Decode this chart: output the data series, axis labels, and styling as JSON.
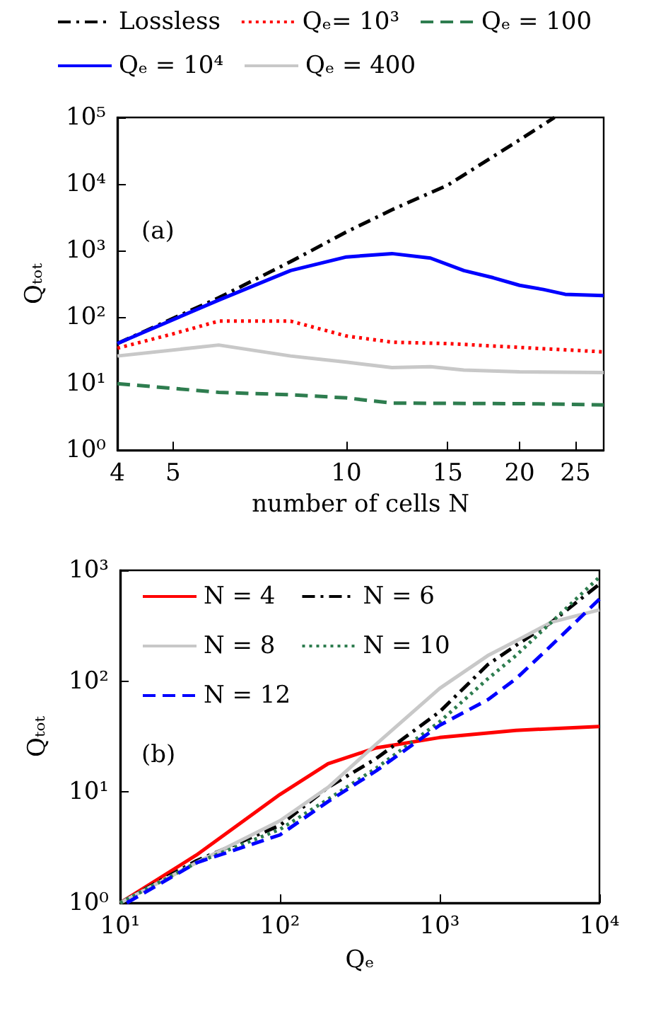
{
  "chart_data": [
    {
      "type": "line",
      "xlabel": "number of cells N",
      "ylabel": "Qₜₒₜ",
      "annotations": [
        "(a)"
      ],
      "log": "xy",
      "legend": "top",
      "grid": false,
      "marker": "none",
      "xlim": [
        4,
        28
      ],
      "xticks": [
        4,
        5,
        10,
        15,
        20,
        25
      ],
      "ylim": [
        1,
        100000
      ],
      "yticks": [
        {
          "value": 1,
          "label": "10⁰"
        },
        {
          "value": 10,
          "label": "10¹"
        },
        {
          "value": 100,
          "label": "10²"
        },
        {
          "value": 1000,
          "label": "10³"
        },
        {
          "value": 10000,
          "label": "10⁴"
        },
        {
          "value": 100000,
          "label": "10⁵"
        }
      ],
      "series": [
        {
          "name": "Lossless",
          "color": "#000000",
          "line_style": "dashdot",
          "x": [
            4,
            6,
            8,
            10,
            12,
            15,
            20,
            23
          ],
          "values": [
            40,
            195,
            680,
            1900,
            4100,
            9600,
            46000,
            100000
          ]
        },
        {
          "name": "Qₑ= 10³",
          "color": "#ff0000",
          "line_style": "dotted",
          "x": [
            4,
            5,
            6,
            8,
            10,
            12,
            15,
            20,
            28
          ],
          "values": [
            34,
            56,
            87,
            87,
            52,
            42,
            40,
            35,
            30
          ]
        },
        {
          "name": "Qₑ = 100",
          "color": "#2e7d4f",
          "line_style": "dashed",
          "x": [
            4,
            6,
            8,
            10,
            12,
            20,
            28
          ],
          "values": [
            10,
            7.4,
            6.8,
            6.1,
            5.1,
            5,
            4.8
          ]
        },
        {
          "name": "Qₑ = 10⁴",
          "color": "#0000ff",
          "line_style": "solid",
          "x": [
            4,
            6,
            8,
            10,
            12,
            14,
            16,
            18,
            20,
            22,
            24,
            28
          ],
          "values": [
            40,
            180,
            500,
            800,
            900,
            770,
            500,
            390,
            300,
            260,
            220,
            210
          ]
        },
        {
          "name": "Qₑ = 400",
          "color": "#c8c8c8",
          "line_style": "solid",
          "x": [
            4,
            6,
            8,
            10,
            12,
            14,
            16,
            20,
            28
          ],
          "values": [
            26,
            38,
            26,
            21,
            17.4,
            18,
            16,
            15,
            14.7
          ]
        }
      ]
    },
    {
      "type": "line",
      "xlabel": "Qₑ",
      "ylabel": "Qₜₒₜ",
      "annotations": [
        "(b)"
      ],
      "log": "xy",
      "legend": "top left",
      "grid": false,
      "marker": "none",
      "xlim": [
        10,
        10000
      ],
      "xticks": [
        {
          "value": 10,
          "label": "10¹"
        },
        {
          "value": 100,
          "label": "10²"
        },
        {
          "value": 1000,
          "label": "10³"
        },
        {
          "value": 10000,
          "label": "10⁴"
        }
      ],
      "ylim": [
        1,
        1000
      ],
      "yticks": [
        {
          "value": 1,
          "label": "10⁰"
        },
        {
          "value": 10,
          "label": "10¹"
        },
        {
          "value": 100,
          "label": "10²"
        },
        {
          "value": 1000,
          "label": "10³"
        }
      ],
      "series": [
        {
          "name": "N = 4",
          "color": "#ff0000",
          "line_style": "solid",
          "x": [
            10,
            30,
            100,
            200,
            400,
            1000,
            3000,
            10000
          ],
          "values": [
            1,
            2.7,
            9.5,
            18,
            25,
            31,
            36,
            39
          ]
        },
        {
          "name": "N = 6",
          "color": "#000000",
          "line_style": "dashdot",
          "x": [
            10,
            30,
            100,
            200,
            400,
            1000,
            2000,
            3000,
            5000,
            10000
          ],
          "values": [
            1,
            2.4,
            5,
            11,
            20,
            53,
            141,
            210,
            340,
            750
          ]
        },
        {
          "name": "N = 8",
          "color": "#c8c8c8",
          "line_style": "solid",
          "x": [
            10,
            30,
            100,
            200,
            400,
            1000,
            2000,
            3000,
            5000,
            10000
          ],
          "values": [
            1,
            2.3,
            5.5,
            11,
            27,
            86,
            170,
            230,
            340,
            440
          ]
        },
        {
          "name": "N = 10",
          "color": "#2e7d4f",
          "line_style": "dotted",
          "x": [
            10,
            30,
            100,
            200,
            400,
            1000,
            2000,
            3000,
            5000,
            10000
          ],
          "values": [
            1,
            2.3,
            4.6,
            8.6,
            16.4,
            43,
            105,
            170,
            340,
            870
          ]
        },
        {
          "name": "N = 12",
          "color": "#0000ff",
          "line_style": "dashed",
          "x": [
            11,
            30,
            100,
            200,
            400,
            1000,
            2000,
            3000,
            5000,
            10000
          ],
          "values": [
            1,
            2.3,
            4.1,
            8.2,
            15.5,
            40,
            68,
            105,
            210,
            550
          ]
        }
      ]
    }
  ]
}
